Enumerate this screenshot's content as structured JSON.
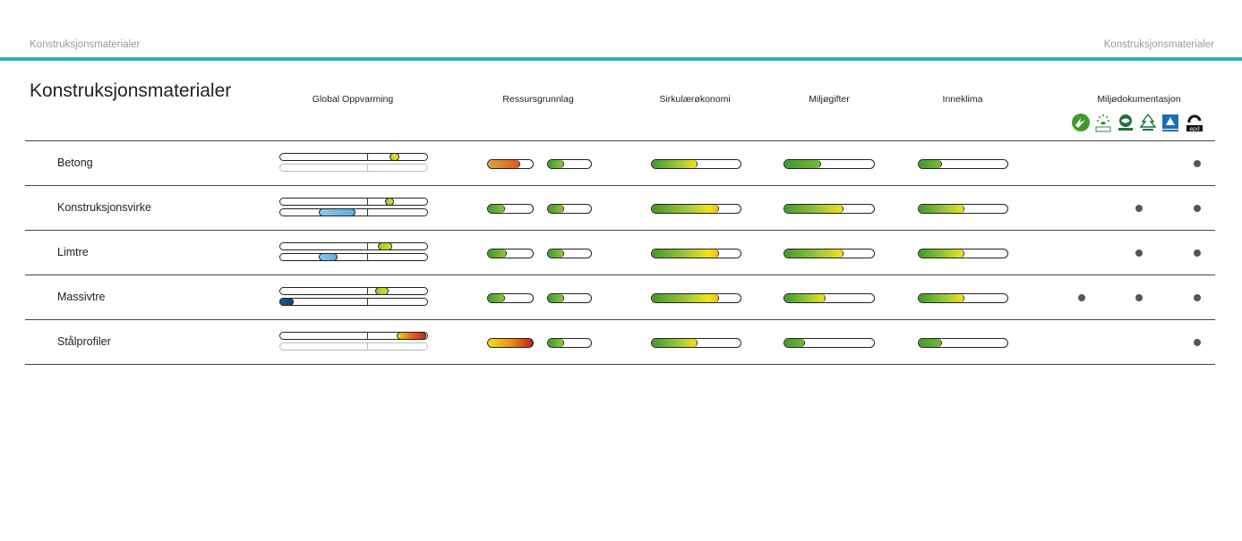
{
  "header": {
    "left": "Konstruksjonsmaterialer",
    "right": "Konstruksjonsmaterialer",
    "accent_color": "#23b5b8"
  },
  "title": "Konstruksjonsmaterialer",
  "columns": [
    "Global Oppvarming",
    "Ressursgrunnlag",
    "Sirkulærøkonomi",
    "Miljøgifter",
    "Inneklima",
    "Miljødokumentasjon"
  ],
  "certification_logos": [
    "nordic-swan-icon",
    "eu-ecolabel-icon",
    "pefc-icon",
    "fsc-icon",
    "svanen-fi-icon",
    "epd-icon"
  ],
  "rows": [
    {
      "label": "Betong",
      "global": {
        "positive": [
          0.75,
          0.82
        ],
        "negative": null,
        "pos_color": "yellow",
        "neg_color": null
      },
      "ressurs": [
        0.7,
        0.35
      ],
      "ressurs_colors": [
        "orange",
        "green"
      ],
      "sirkulaer": 0.5,
      "miljogifter": 0.4,
      "inneklima": 0.25,
      "dokumentasjon": [
        false,
        false,
        true
      ]
    },
    {
      "label": "Konstruksjonsvirke",
      "global": {
        "positive": [
          0.72,
          0.78
        ],
        "negative": [
          0.27,
          0.52
        ],
        "pos_color": "lightgreen",
        "neg_color": "lightblue"
      },
      "ressurs": [
        0.35,
        0.35
      ],
      "ressurs_colors": [
        "green",
        "green"
      ],
      "sirkulaer": 0.75,
      "miljogifter": 0.65,
      "inneklima": 0.5,
      "dokumentasjon": [
        false,
        true,
        true
      ]
    },
    {
      "label": "Limtre",
      "global": {
        "positive": [
          0.67,
          0.77
        ],
        "negative": [
          0.27,
          0.4
        ],
        "pos_color": "lightgreen",
        "neg_color": "lightblue"
      },
      "ressurs": [
        0.4,
        0.35
      ],
      "ressurs_colors": [
        "green",
        "green"
      ],
      "sirkulaer": 0.75,
      "miljogifter": 0.65,
      "inneklima": 0.5,
      "dokumentasjon": [
        false,
        true,
        true
      ]
    },
    {
      "label": "Massivtre",
      "global": {
        "positive": [
          0.65,
          0.74
        ],
        "negative": [
          0.0,
          0.1
        ],
        "pos_color": "lightgreen",
        "neg_color": "darkblue"
      },
      "ressurs": [
        0.35,
        0.35
      ],
      "ressurs_colors": [
        "green",
        "green"
      ],
      "sirkulaer": 0.75,
      "miljogifter": 0.45,
      "inneklima": 0.5,
      "dokumentasjon": [
        true,
        true,
        true
      ]
    },
    {
      "label": "Stålprofiler",
      "global": {
        "positive": [
          0.8,
          1.0
        ],
        "negative": null,
        "pos_color": "red",
        "neg_color": null
      },
      "ressurs": [
        0.98,
        0.35
      ],
      "ressurs_colors": [
        "yellow-red",
        "green"
      ],
      "sirkulaer": 0.5,
      "miljogifter": 0.22,
      "inneklima": 0.25,
      "dokumentasjon": [
        false,
        false,
        true
      ]
    }
  ]
}
